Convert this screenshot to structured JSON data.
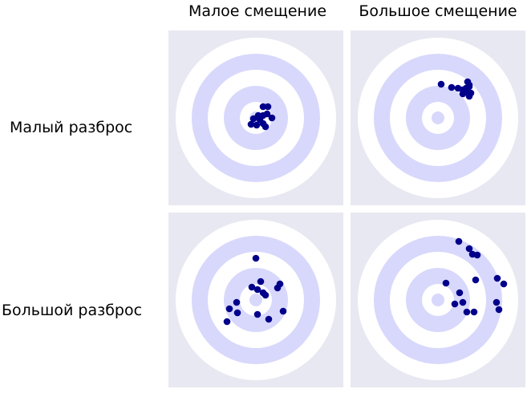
{
  "columns": [
    {
      "label": "Малое смещение"
    },
    {
      "label": "Большое смещение"
    }
  ],
  "rows": [
    {
      "label": "Малый разброс"
    },
    {
      "label": "Большой разброс"
    }
  ],
  "colors": {
    "panel_background": "#e8e8f2",
    "ring_light": "#ffffff",
    "ring_dark": "#d8d8fc",
    "point": "#00008b"
  },
  "targets": [
    {
      "name": "low-bias-low-variance",
      "points": [
        [
          0.09,
          0.14
        ],
        [
          0.15,
          0.14
        ],
        [
          0.03,
          0.03
        ],
        [
          0.09,
          0.03
        ],
        [
          0.14,
          0.05
        ],
        [
          0.2,
          0.0
        ],
        [
          -0.03,
          -0.01
        ],
        [
          0.01,
          -0.09
        ],
        [
          0.09,
          -0.07
        ],
        [
          0.12,
          -0.11
        ],
        [
          -0.06,
          -0.08
        ],
        [
          0.05,
          -0.02
        ]
      ]
    },
    {
      "name": "high-bias-low-variance",
      "points": [
        [
          0.04,
          0.42
        ],
        [
          0.17,
          0.38
        ],
        [
          0.25,
          0.37
        ],
        [
          0.35,
          0.37
        ],
        [
          0.39,
          0.39
        ],
        [
          0.37,
          0.45
        ],
        [
          0.39,
          0.41
        ],
        [
          0.31,
          0.35
        ],
        [
          0.35,
          0.33
        ],
        [
          0.31,
          0.3
        ],
        [
          0.41,
          0.31
        ],
        [
          0.39,
          0.27
        ]
      ]
    },
    {
      "name": "low-bias-high-variance",
      "points": [
        [
          0.0,
          0.52
        ],
        [
          -0.05,
          0.16
        ],
        [
          0.02,
          0.13
        ],
        [
          0.09,
          0.09
        ],
        [
          0.12,
          0.06
        ],
        [
          -0.24,
          -0.03
        ],
        [
          -0.33,
          -0.11
        ],
        [
          -0.23,
          -0.16
        ],
        [
          -0.36,
          -0.27
        ],
        [
          0.27,
          0.15
        ],
        [
          0.3,
          0.2
        ],
        [
          0.34,
          -0.14
        ],
        [
          0.02,
          -0.18
        ],
        [
          0.16,
          -0.24
        ],
        [
          0.06,
          0.23
        ]
      ]
    },
    {
      "name": "high-bias-high-variance",
      "points": [
        [
          0.26,
          0.73
        ],
        [
          0.39,
          0.64
        ],
        [
          0.43,
          0.57
        ],
        [
          0.49,
          0.56
        ],
        [
          0.74,
          0.27
        ],
        [
          0.82,
          0.2
        ],
        [
          0.1,
          0.21
        ],
        [
          0.27,
          0.09
        ],
        [
          0.47,
          0.25
        ],
        [
          0.73,
          -0.03
        ],
        [
          0.31,
          -0.03
        ],
        [
          0.21,
          -0.05
        ],
        [
          0.36,
          -0.15
        ],
        [
          0.45,
          -0.15
        ],
        [
          0.76,
          -0.12
        ]
      ]
    }
  ]
}
